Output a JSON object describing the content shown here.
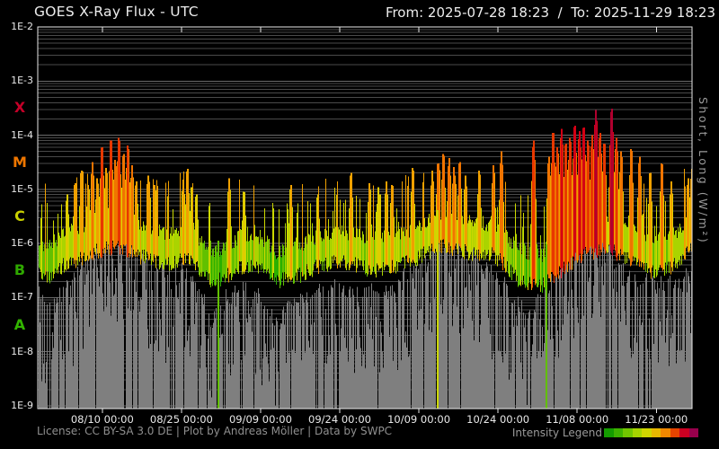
{
  "header": {
    "title": "GOES X-Ray Flux - UTC",
    "range_label": "From: 2025-07-28 18:23  /  To: 2025-11-29 18:23"
  },
  "footer": {
    "license": "License: CC BY-SA 3.0 DE | Plot by Andreas Möller | Data by SWPC"
  },
  "chart_data": {
    "type": "area",
    "title": "GOES X-Ray Flux - UTC",
    "x_start": "2025-07-28 18:23",
    "x_end": "2025-11-29 18:23",
    "days_total": 124,
    "y_scale": "log",
    "y_unit": "W/m²",
    "ylim_log": [
      -9.05,
      -2
    ],
    "ylabel_right": "Short, Long (W/m²)",
    "grid": "horizontal-log-minor",
    "y_ticks": [
      {
        "label": "1E-2",
        "log": -2
      },
      {
        "label": "1E-3",
        "log": -3
      },
      {
        "label": "1E-4",
        "log": -4
      },
      {
        "label": "1E-5",
        "log": -5
      },
      {
        "label": "1E-6",
        "log": -6
      },
      {
        "label": "1E-7",
        "log": -7
      },
      {
        "label": "1E-8",
        "log": -8
      },
      {
        "label": "1E-9",
        "log": -9
      }
    ],
    "flare_class_labels": [
      {
        "label": "X",
        "log": -3.5,
        "color": "#c40028"
      },
      {
        "label": "M",
        "log": -4.5,
        "color": "#ee7600"
      },
      {
        "label": "C",
        "log": -5.5,
        "color": "#c9d000"
      },
      {
        "label": "B",
        "log": -6.5,
        "color": "#2fa800"
      },
      {
        "label": "A",
        "log": -7.5,
        "color": "#32b400"
      }
    ],
    "x_ticks": [
      {
        "label": "08/10 00:00",
        "day": 12.234
      },
      {
        "label": "08/25 00:00",
        "day": 27.234
      },
      {
        "label": "09/09 00:00",
        "day": 42.234
      },
      {
        "label": "09/24 00:00",
        "day": 57.234
      },
      {
        "label": "10/09 00:00",
        "day": 72.234
      },
      {
        "label": "10/24 00:00",
        "day": 87.234
      },
      {
        "label": "11/08 00:00",
        "day": 102.234
      },
      {
        "label": "11/23 00:00",
        "day": 117.234
      }
    ],
    "legend": {
      "label": "Intensity Legend",
      "colors": [
        "#149c00",
        "#3db200",
        "#71c600",
        "#a5d400",
        "#d0d600",
        "#e8b800",
        "#f08800",
        "#e64400",
        "#cc0022",
        "#98004c"
      ]
    },
    "colormap_log_min_color": [
      [
        -3.65,
        "#b0002e"
      ],
      [
        -3.95,
        "#d40014"
      ],
      [
        -4.25,
        "#e83800"
      ],
      [
        -4.6,
        "#f07400"
      ],
      [
        -4.95,
        "#f0a000"
      ],
      [
        -5.25,
        "#e0cc00"
      ],
      [
        -5.6,
        "#ccd800"
      ],
      [
        -5.92,
        "#aad400"
      ],
      [
        -6.15,
        "#62c000"
      ],
      [
        -99,
        "#2cb000"
      ]
    ],
    "series": [
      {
        "name": "long",
        "style": "intensity-colored",
        "baseline_points": [
          [
            0,
            1.1e-06
          ],
          [
            2,
            9e-07
          ],
          [
            4,
            1.3e-06
          ],
          [
            7,
            1.8e-06
          ],
          [
            10,
            2.4e-06
          ],
          [
            13,
            3e-06
          ],
          [
            16,
            3.2e-06
          ],
          [
            19,
            2.2e-06
          ],
          [
            22,
            1.8e-06
          ],
          [
            25,
            1.5e-06
          ],
          [
            28,
            2e-06
          ],
          [
            31,
            1.1e-06
          ],
          [
            33,
            7.5e-07
          ],
          [
            35,
            8.5e-07
          ],
          [
            38,
            1.3e-06
          ],
          [
            41,
            1.6e-06
          ],
          [
            43,
            1.1e-06
          ],
          [
            45,
            7e-07
          ],
          [
            47,
            8e-07
          ],
          [
            50,
            1e-06
          ],
          [
            53,
            1.4e-06
          ],
          [
            56,
            1.7e-06
          ],
          [
            59,
            1.6e-06
          ],
          [
            62,
            1.3e-06
          ],
          [
            65,
            1.2e-06
          ],
          [
            68,
            1.4e-06
          ],
          [
            71,
            1.8e-06
          ],
          [
            74,
            2.6e-06
          ],
          [
            77,
            3.2e-06
          ],
          [
            80,
            2.8e-06
          ],
          [
            83,
            2.2e-06
          ],
          [
            86,
            2.4e-06
          ],
          [
            88,
            1.6e-06
          ],
          [
            91,
            8e-07
          ],
          [
            94,
            6e-07
          ],
          [
            96,
            6.5e-07
          ],
          [
            98,
            9e-07
          ],
          [
            100,
            1.4e-06
          ],
          [
            103,
            2.2e-06
          ],
          [
            106,
            2.8e-06
          ],
          [
            109,
            2.6e-06
          ],
          [
            112,
            2e-06
          ],
          [
            115,
            1.3e-06
          ],
          [
            117,
            1e-06
          ],
          [
            119,
            1.2e-06
          ],
          [
            121,
            1.6e-06
          ],
          [
            123,
            2.6e-06
          ],
          [
            124,
            4e-06
          ]
        ],
        "flares": [
          [
            5.5,
            8e-06
          ],
          [
            7.0,
            1.3e-05
          ],
          [
            8.2,
            2.2e-05
          ],
          [
            9.5,
            1.2e-05
          ],
          [
            10.3,
            3.2e-05
          ],
          [
            11.2,
            1.6e-05
          ],
          [
            12.1,
            6e-05
          ],
          [
            12.9,
            2.5e-05
          ],
          [
            13.8,
            8e-05
          ],
          [
            14.6,
            3.5e-05
          ],
          [
            15.3,
            9e-05
          ],
          [
            16.2,
            4.5e-05
          ],
          [
            17.0,
            6.5e-05
          ],
          [
            17.8,
            2.8e-05
          ],
          [
            18.6,
            1.4e-05
          ],
          [
            20.9,
            1.8e-05
          ],
          [
            22.1,
            1.2e-05
          ],
          [
            27.5,
            1.5e-05
          ],
          [
            28.3,
            2.4e-05
          ],
          [
            29.1,
            1.1e-05
          ],
          [
            30.0,
            8e-06
          ],
          [
            36.2,
            1.6e-05
          ],
          [
            39.0,
            9e-06
          ],
          [
            47.9,
            1.2e-05
          ],
          [
            53.0,
            8e-06
          ],
          [
            59.3,
            2e-05
          ],
          [
            62.8,
            1.3e-05
          ],
          [
            64.5,
            1.1e-05
          ],
          [
            66.0,
            1.4e-05
          ],
          [
            67.1,
            1.2e-05
          ],
          [
            71.0,
            2.5e-05
          ],
          [
            74.7,
            2.2e-05
          ],
          [
            75.8,
            3e-05
          ],
          [
            76.8,
            4.5e-05
          ],
          [
            77.9,
            3.8e-05
          ],
          [
            78.8,
            2.6e-05
          ],
          [
            79.9,
            3.2e-05
          ],
          [
            81.0,
            1.8e-05
          ],
          [
            83.6,
            2.2e-05
          ],
          [
            86.3,
            2.8e-05
          ],
          [
            87.8,
            5e-05
          ],
          [
            93.9,
            8e-05
          ],
          [
            96.8,
            4e-05
          ],
          [
            97.6,
            0.00011
          ],
          [
            98.4,
            6e-05
          ],
          [
            99.2,
            0.00013
          ],
          [
            100.0,
            7e-05
          ],
          [
            100.8,
            9e-05
          ],
          [
            101.7,
            0.00015
          ],
          [
            102.6,
            0.00012
          ],
          [
            103.4,
            0.00014
          ],
          [
            104.2,
            8e-05
          ],
          [
            105.0,
            0.0001
          ],
          [
            105.7,
            0.00029
          ],
          [
            106.5,
            0.00011
          ],
          [
            107.3,
            7e-05
          ],
          [
            108.7,
            0.00031
          ],
          [
            109.6,
            9e-05
          ],
          [
            110.5,
            5e-05
          ],
          [
            112.4,
            5.5e-05
          ],
          [
            114.0,
            4e-05
          ],
          [
            116.0,
            2e-05
          ],
          [
            118.2,
            3e-05
          ],
          [
            120.0,
            1.4e-05
          ],
          [
            123.2,
            1.6e-05
          ],
          [
            123.9,
            2.4e-05
          ]
        ],
        "dropout_days": [
          34.0,
          75.6,
          96.3
        ]
      },
      {
        "name": "short",
        "style": "gray-fill",
        "color": "#7f7f7f",
        "envelope_points": [
          [
            0,
            2e-07
          ],
          [
            3,
            1.2e-07
          ],
          [
            6,
            3e-07
          ],
          [
            9,
            7e-07
          ],
          [
            12,
            1.4e-06
          ],
          [
            15,
            1.8e-06
          ],
          [
            18,
            1.1e-06
          ],
          [
            21,
            7e-07
          ],
          [
            24,
            4e-07
          ],
          [
            27,
            6e-07
          ],
          [
            30,
            3e-07
          ],
          [
            33,
            9e-08
          ],
          [
            36,
            1.8e-07
          ],
          [
            39,
            2.8e-07
          ],
          [
            42,
            1.6e-07
          ],
          [
            45,
            6e-08
          ],
          [
            48,
            1.1e-07
          ],
          [
            51,
            1.8e-07
          ],
          [
            54,
            3.2e-07
          ],
          [
            57,
            2.6e-07
          ],
          [
            60,
            2e-07
          ],
          [
            63,
            2.6e-07
          ],
          [
            66,
            2.2e-07
          ],
          [
            69,
            3.5e-07
          ],
          [
            72,
            7e-07
          ],
          [
            75,
            1.3e-06
          ],
          [
            78,
            1.9e-06
          ],
          [
            81,
            1.1e-06
          ],
          [
            84,
            7e-07
          ],
          [
            87,
            4.5e-07
          ],
          [
            90,
            1.8e-07
          ],
          [
            93,
            7e-08
          ],
          [
            96,
            2.5e-07
          ],
          [
            99,
            6e-07
          ],
          [
            102,
            1.3e-06
          ],
          [
            105,
            1.9e-06
          ],
          [
            108,
            1.3e-06
          ],
          [
            111,
            6e-07
          ],
          [
            114,
            3e-07
          ],
          [
            117,
            3.5e-07
          ],
          [
            120,
            2.8e-07
          ],
          [
            123,
            5e-07
          ],
          [
            124,
            7e-07
          ]
        ]
      }
    ]
  }
}
